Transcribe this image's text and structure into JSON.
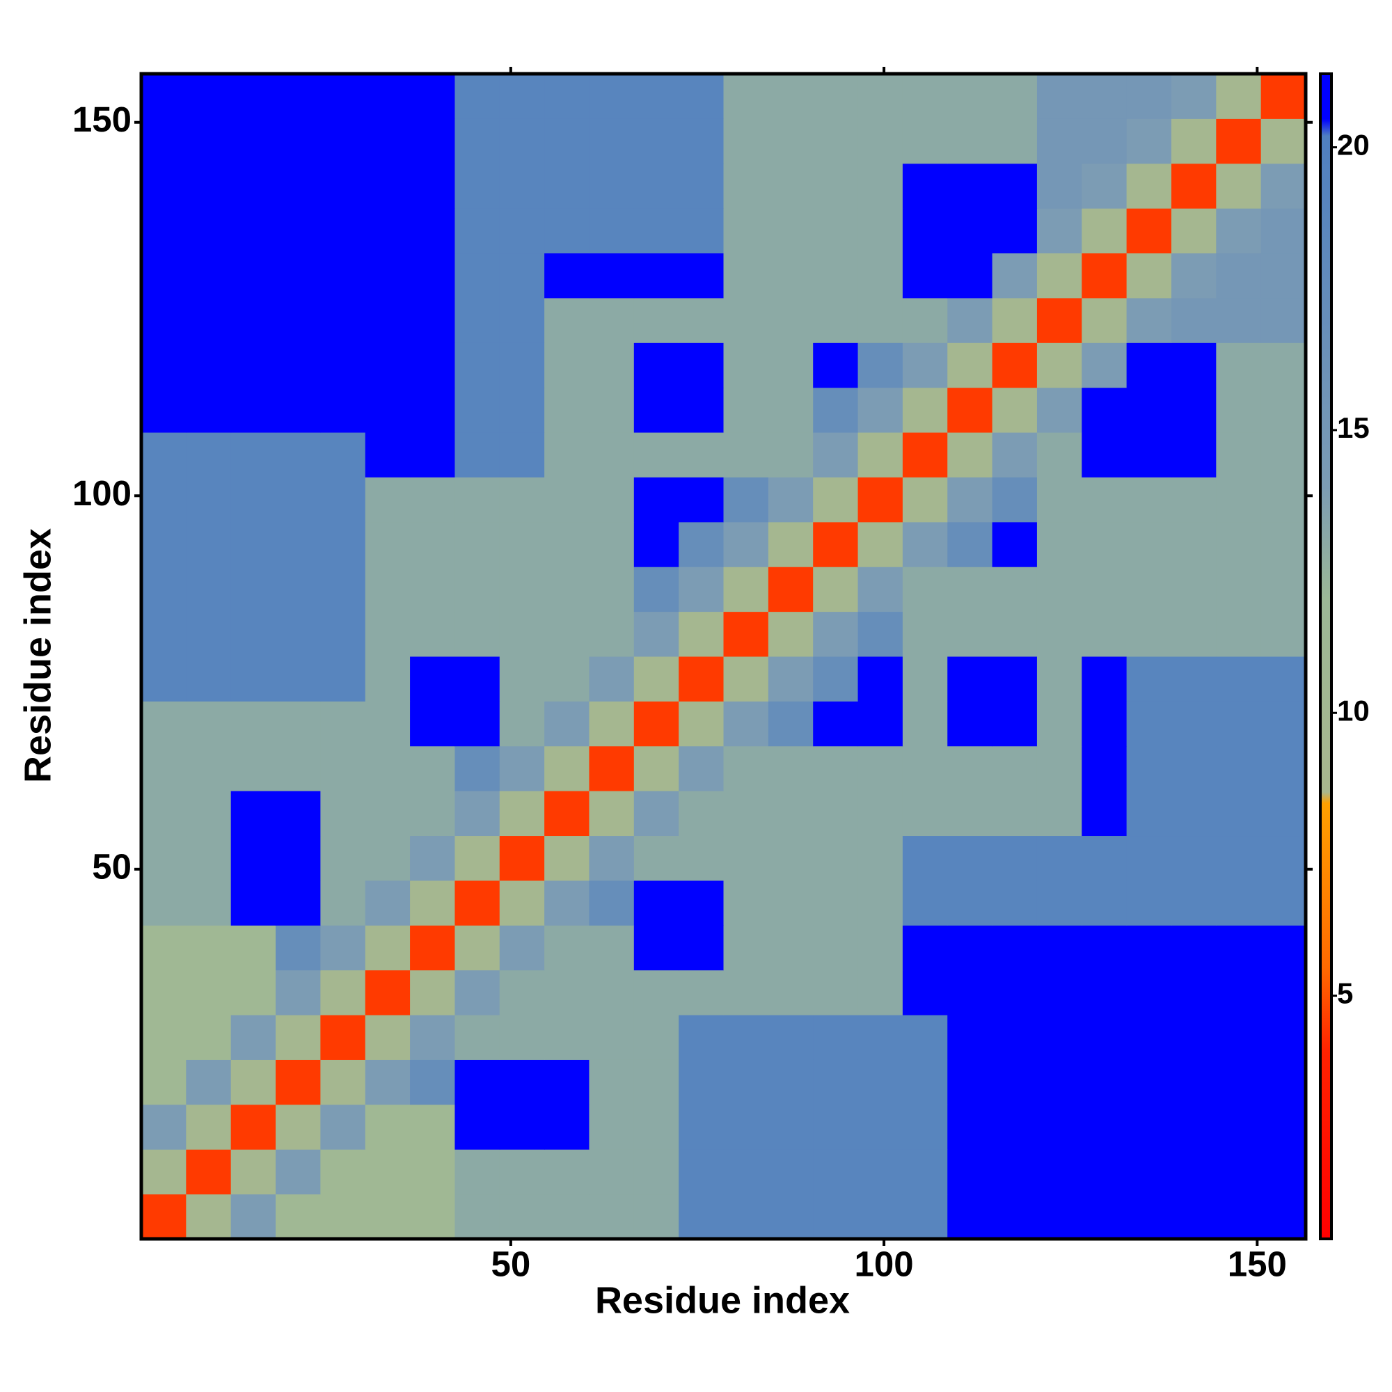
{
  "chart_data": {
    "type": "heatmap",
    "xlabel": "Residue index",
    "ylabel": "Residue index",
    "xbins": [
      0.5,
      6.5,
      12.5,
      18.5,
      24.5,
      30.5,
      36.5,
      42.5,
      48.5,
      54.5,
      60.5,
      66.5,
      72.5,
      78.5,
      84.5,
      90.5,
      96.5,
      102.5,
      108.5,
      114.5,
      120.5,
      126.5,
      132.5,
      138.5,
      144.5,
      150.5,
      156.5
    ],
    "ybins": [
      0.5,
      6.5,
      12.5,
      18.5,
      24.5,
      30.5,
      36.5,
      42.5,
      48.5,
      54.5,
      60.5,
      66.5,
      72.5,
      78.5,
      84.5,
      90.5,
      96.5,
      102.5,
      108.5,
      114.5,
      120.5,
      126.5,
      132.5,
      138.5,
      144.5,
      150.5,
      156.5
    ],
    "xlim": [
      0.5,
      156.5
    ],
    "ylim": [
      0.5,
      156.5
    ],
    "xticks": [
      50,
      100,
      150
    ],
    "yticks": [
      50,
      100,
      150
    ],
    "clim": [
      0.7,
      21.3
    ],
    "cticks": [
      5,
      10,
      15,
      20
    ],
    "colorscale": [
      [
        0.7,
        "#ff0000"
      ],
      [
        4,
        "#ff2200"
      ],
      [
        5.5,
        "#ff6a00"
      ],
      [
        8.4,
        "#ffa000"
      ],
      [
        8.6,
        "#a8b78e"
      ],
      [
        12,
        "#9cb896"
      ],
      [
        14,
        "#7c9cb4"
      ],
      [
        20.2,
        "#4f7fc0"
      ],
      [
        20.5,
        "#0000ff"
      ],
      [
        21.3,
        "#0000ff"
      ]
    ],
    "z": [
      [
        4.5,
        9.5,
        14,
        11,
        11,
        11,
        11,
        13,
        13,
        13,
        13,
        13,
        19,
        19,
        19,
        19,
        19,
        19,
        21,
        21,
        21,
        21,
        21,
        21,
        21,
        21
      ],
      [
        9.5,
        4.5,
        9.5,
        14,
        11,
        11,
        11,
        13,
        13,
        13,
        13,
        13,
        19,
        19,
        19,
        19,
        19,
        19,
        21,
        21,
        21,
        21,
        21,
        21,
        21,
        21
      ],
      [
        14,
        9.5,
        4.5,
        9.5,
        14,
        11,
        11,
        21,
        21,
        21,
        13,
        13,
        19,
        19,
        19,
        19,
        19,
        19,
        21,
        21,
        21,
        21,
        21,
        21,
        21,
        21
      ],
      [
        11,
        14,
        9.5,
        4.5,
        9.5,
        14,
        17,
        21,
        21,
        21,
        13,
        13,
        19,
        19,
        19,
        19,
        19,
        19,
        21,
        21,
        21,
        21,
        21,
        21,
        21,
        21
      ],
      [
        11,
        11,
        14,
        9.5,
        4.5,
        9.5,
        14,
        13,
        13,
        13,
        13,
        13,
        19,
        19,
        19,
        19,
        19,
        19,
        21,
        21,
        21,
        21,
        21,
        21,
        21,
        21
      ],
      [
        11,
        11,
        11,
        14,
        9.5,
        4.5,
        9.5,
        14,
        13,
        13,
        13,
        13,
        13,
        13,
        13,
        13,
        13,
        21,
        21,
        21,
        21,
        21,
        21,
        21,
        21,
        21
      ],
      [
        11,
        11,
        11,
        17,
        14,
        9.5,
        4.5,
        9.5,
        14,
        13,
        13,
        21,
        21,
        13,
        13,
        13,
        13,
        21,
        21,
        21,
        21,
        21,
        21,
        21,
        21,
        21
      ],
      [
        13,
        13,
        21,
        21,
        13,
        14,
        9.5,
        4.5,
        9.5,
        14,
        17,
        21,
        21,
        13,
        13,
        13,
        13,
        19,
        19,
        19,
        19,
        19,
        19,
        19,
        19,
        19
      ],
      [
        13,
        13,
        21,
        21,
        13,
        13,
        14,
        9.5,
        4.5,
        9.5,
        14,
        13,
        13,
        13,
        13,
        13,
        13,
        19,
        19,
        19,
        19,
        19,
        19,
        19,
        19,
        19
      ],
      [
        13,
        13,
        21,
        21,
        13,
        13,
        13,
        14,
        9.5,
        4.5,
        9.5,
        14,
        13,
        13,
        13,
        13,
        13,
        13,
        13,
        13,
        13,
        21,
        19,
        19,
        19,
        19
      ],
      [
        13,
        13,
        13,
        13,
        13,
        13,
        13,
        17,
        14,
        9.5,
        4.5,
        9.5,
        14,
        13,
        13,
        13,
        13,
        13,
        13,
        13,
        13,
        21,
        19,
        19,
        19,
        19
      ],
      [
        13,
        13,
        13,
        13,
        13,
        13,
        21,
        21,
        13,
        14,
        9.5,
        4.5,
        9.5,
        14,
        17,
        21,
        21,
        13,
        21,
        21,
        13,
        21,
        19,
        19,
        19,
        19
      ],
      [
        19,
        19,
        19,
        19,
        19,
        13,
        21,
        21,
        13,
        13,
        14,
        9.5,
        4.5,
        9.5,
        14,
        17,
        21,
        13,
        21,
        21,
        13,
        21,
        19,
        19,
        19,
        19
      ],
      [
        19,
        19,
        19,
        19,
        19,
        13,
        13,
        13,
        13,
        13,
        13,
        14,
        9.5,
        4.5,
        9.5,
        14,
        17,
        13,
        13,
        13,
        13,
        13,
        13,
        13,
        13,
        13
      ],
      [
        19,
        19,
        19,
        19,
        19,
        13,
        13,
        13,
        13,
        13,
        13,
        17,
        14,
        9.5,
        4.5,
        9.5,
        14,
        13,
        13,
        13,
        13,
        13,
        13,
        13,
        13,
        13
      ],
      [
        19,
        19,
        19,
        19,
        19,
        13,
        13,
        13,
        13,
        13,
        13,
        21,
        17,
        14,
        9.5,
        4.5,
        9.5,
        14,
        17,
        21,
        13,
        13,
        13,
        13,
        13,
        13
      ],
      [
        19,
        19,
        19,
        19,
        19,
        13,
        13,
        13,
        13,
        13,
        13,
        21,
        21,
        17,
        14,
        9.5,
        4.5,
        9.5,
        14,
        17,
        13,
        13,
        13,
        13,
        13,
        13
      ],
      [
        19,
        19,
        19,
        19,
        19,
        21,
        21,
        19,
        19,
        13,
        13,
        13,
        13,
        13,
        13,
        14,
        9.5,
        4.5,
        9.5,
        14,
        13,
        21,
        21,
        21,
        13,
        13
      ],
      [
        21,
        21,
        21,
        21,
        21,
        21,
        21,
        19,
        19,
        13,
        13,
        21,
        21,
        13,
        13,
        17,
        14,
        9.5,
        4.5,
        9.5,
        14,
        21,
        21,
        21,
        13,
        13
      ],
      [
        21,
        21,
        21,
        21,
        21,
        21,
        21,
        19,
        19,
        13,
        13,
        21,
        21,
        13,
        13,
        21,
        17,
        14,
        9.5,
        4.5,
        9.5,
        14,
        21,
        21,
        13,
        13
      ],
      [
        21,
        21,
        21,
        21,
        21,
        21,
        21,
        19,
        19,
        13,
        13,
        13,
        13,
        13,
        13,
        13,
        13,
        13,
        14,
        9.5,
        4.5,
        9.5,
        14,
        15,
        15,
        15
      ],
      [
        21,
        21,
        21,
        21,
        21,
        21,
        21,
        19,
        19,
        21,
        21,
        21,
        21,
        13,
        13,
        13,
        13,
        21,
        21,
        14,
        9.5,
        4.5,
        9.5,
        14,
        15,
        15
      ],
      [
        21,
        21,
        21,
        21,
        21,
        21,
        21,
        19,
        19,
        19,
        19,
        19,
        19,
        13,
        13,
        13,
        13,
        21,
        21,
        21,
        14,
        9.5,
        4.5,
        9.5,
        14,
        15
      ],
      [
        21,
        21,
        21,
        21,
        21,
        21,
        21,
        19,
        19,
        19,
        19,
        19,
        19,
        13,
        13,
        13,
        13,
        21,
        21,
        21,
        15,
        14,
        9.5,
        4.5,
        9.5,
        14
      ],
      [
        21,
        21,
        21,
        21,
        21,
        21,
        21,
        19,
        19,
        19,
        19,
        19,
        19,
        13,
        13,
        13,
        13,
        13,
        13,
        13,
        15,
        15,
        14,
        9.5,
        4.5,
        9.5
      ],
      [
        21,
        21,
        21,
        21,
        21,
        21,
        21,
        19,
        19,
        19,
        19,
        19,
        19,
        13,
        13,
        13,
        13,
        13,
        13,
        13,
        15,
        15,
        15,
        14,
        9.5,
        4.5
      ]
    ]
  }
}
